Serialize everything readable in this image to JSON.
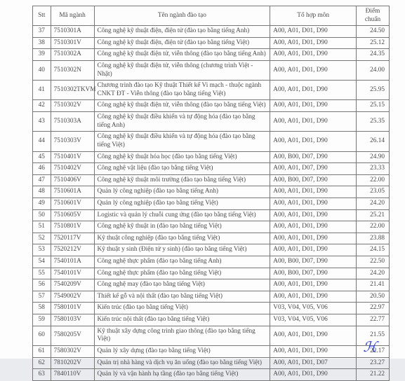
{
  "columns": {
    "stt": "Stt",
    "code": "Mã ngành",
    "name": "Tên ngành đào tạo",
    "combo": "Tổ hợp môn",
    "score": "Điểm chuẩn"
  },
  "rows": [
    {
      "stt": "37",
      "code": "7510301A",
      "name": "Công nghệ kỹ thuật điện, điện tử (đào tạo bằng tiếng Anh)",
      "combo": "A00, A01, D01, D90",
      "score": "24.50"
    },
    {
      "stt": "38",
      "code": "7510301V",
      "name": "Công nghệ kỹ thuật điện, điện tử (đào tạo bằng tiếng Việt)",
      "combo": "A00, A01, D01, D90",
      "score": "25.12"
    },
    {
      "stt": "39",
      "code": "7510302A",
      "name": "Công nghệ kỹ thuật điện tử, viễn thông (đào tạo bằng tiếng Anh)",
      "combo": "A00, A01, D01, D90",
      "score": "24.35"
    },
    {
      "stt": "40",
      "code": "7510302N",
      "name": "Công nghệ kỹ thuật điện tử, viễn thông (chương trình Việt - Nhật)",
      "combo": "A00, A01, D01, D90",
      "score": "24.00"
    },
    {
      "stt": "41",
      "code": "7510302TKVM",
      "name": "Chương trình đào tạo Kỹ thuật Thiết kế Vi mạch - thuộc ngành CNKT ĐT - Viễn thông (đào tạo bằng tiếng Việt)",
      "combo": "A00, A01, D01, D90",
      "score": "25.95"
    },
    {
      "stt": "42",
      "code": "7510302V",
      "name": "Công nghệ kỹ thuật điện tử, viễn thông (đào tạo bằng tiếng Việt)",
      "combo": "A00, A01, D01, D90",
      "score": "25.15"
    },
    {
      "stt": "43",
      "code": "7510303A",
      "name": "Công nghệ kỹ thuật điều khiển và tự động hóa (đào tạo bằng tiếng Anh)",
      "combo": "A00, A01, D01, D90",
      "score": "25.35"
    },
    {
      "stt": "44",
      "code": "7510303V",
      "name": "Công nghệ kỹ thuật điều khiển và tự động hóa (đào tạo bằng tiếng Việt)",
      "combo": "A00, A01, D01, D90",
      "score": "26.14"
    },
    {
      "stt": "45",
      "code": "7510401V",
      "name": "Công nghệ kỹ thuật hóa học (đào tạo bằng tiếng Việt)",
      "combo": "A00, B00, D07, D90",
      "score": "24.90"
    },
    {
      "stt": "46",
      "code": "7510402V",
      "name": "Công nghệ vật liệu (đào tạo bằng tiếng Việt)",
      "combo": "A00, A01, D07, D90",
      "score": "23.33"
    },
    {
      "stt": "47",
      "code": "7510406V",
      "name": "Công nghệ kỹ thuật môi trường (đào tạo bằng tiếng Việt)",
      "combo": "A00, B00, D07, D90",
      "score": "22.00"
    },
    {
      "stt": "48",
      "code": "7510601A",
      "name": "Quản lý công nghiệp (đào tạo bằng tiếng Anh)",
      "combo": "A00, A01, D01, D90",
      "score": "23.05"
    },
    {
      "stt": "49",
      "code": "7510601V",
      "name": "Quản lý công nghiệp (đào tạo bằng tiếng Việt)",
      "combo": "A00, A01, D01, D90",
      "score": "24.20"
    },
    {
      "stt": "50",
      "code": "7510605V",
      "name": "Logistic và quản lý chuỗi cung ứng (đào tạo bằng tiếng Việt)",
      "combo": "A00, A01, D01, D90",
      "score": "25.21"
    },
    {
      "stt": "51",
      "code": "7510801V",
      "name": "Công nghệ kỹ thuật in (đào tạo bằng tiếng Việt)",
      "combo": "A00, A01, D01, D90",
      "score": "22.00"
    },
    {
      "stt": "52",
      "code": "7520117V",
      "name": "Kỹ thuật công nghiệp (đào tạo bằng tiếng Việt)",
      "combo": "A00, A01, D01, D90",
      "score": "23.88"
    },
    {
      "stt": "53",
      "code": "7520212V",
      "name": "Kỹ thuật y sinh (Điện tử y sinh) (đào tạo bằng tiếng Việt)",
      "combo": "A00, A01, D01, D90",
      "score": "24.15"
    },
    {
      "stt": "54",
      "code": "7540101A",
      "name": "Công nghệ thực phẩm (đào tạo bằng tiếng Anh)",
      "combo": "A00, B00, D07, D90",
      "score": "22.50"
    },
    {
      "stt": "55",
      "code": "7540101V",
      "name": "Công nghệ thực phẩm (đào tạo bằng tiếng Việt)",
      "combo": "A00, B00, D07, D90",
      "score": "24.20"
    },
    {
      "stt": "56",
      "code": "7540209V",
      "name": "Công nghệ may (đào tạo bằng tiếng Việt)",
      "combo": "A00, A01, D01, D90",
      "score": "21.41"
    },
    {
      "stt": "57",
      "code": "7549002V",
      "name": "Thiết kế gỗ và nội thất (đào tạo bằng tiếng Việt)",
      "combo": "A00, A01, D01, D90",
      "score": "20.50"
    },
    {
      "stt": "58",
      "code": "7580101V",
      "name": "Kiến trúc (đào tạo bằng tiếng Việt)",
      "combo": "V03, V04, V05, V06",
      "score": "22.97"
    },
    {
      "stt": "59",
      "code": "7580103V",
      "name": "Kiến trúc nội thất (đào tạo bằng tiếng Việt)",
      "combo": "V03, V04, V05, V06",
      "score": "22.77"
    },
    {
      "stt": "60",
      "code": "7580205V",
      "name": "Kỹ thuật xây dựng công trình giao thông (đào tạo bằng tiếng Việt)",
      "combo": "A00, A01, D01, D90",
      "score": "21.55"
    },
    {
      "stt": "61",
      "code": "7580302V",
      "name": "Quản lý xây dựng (đào tạo bằng tiếng Việt)",
      "combo": "A00, A01, D01, D90",
      "score": "22.17"
    },
    {
      "stt": "62",
      "code": "7810202V",
      "name": "Quản trị nhà hàng và dịch vụ ăn uống (đào tạo bằng tiếng Việt)",
      "combo": "A00, A01, D01, D07",
      "score": "23.27"
    },
    {
      "stt": "63",
      "code": "7840110V",
      "name": "Quản lý và vận hành hạ tầng (đào tạo bằng tiếng Việt)",
      "combo": "A00, A01, D01, D90",
      "score": "21.22"
    }
  ]
}
